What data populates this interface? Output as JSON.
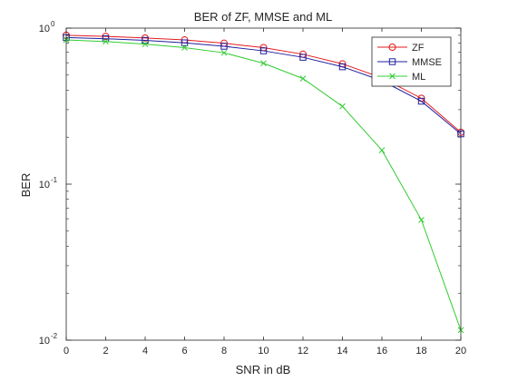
{
  "chart_data": {
    "type": "line",
    "title": "BER of ZF, MMSE and ML",
    "xlabel": "SNR in dB",
    "ylabel": "BER",
    "xlim": [
      0,
      20
    ],
    "ylim": [
      0.01,
      1
    ],
    "yscale": "log",
    "grid": false,
    "legend_position": "top-right",
    "x": [
      0,
      2,
      4,
      6,
      8,
      10,
      12,
      14,
      16,
      18,
      20
    ],
    "x_ticks": [
      "0",
      "2",
      "4",
      "6",
      "8",
      "10",
      "12",
      "14",
      "16",
      "18",
      "20"
    ],
    "y_ticks": [
      {
        "value": 0.01,
        "base": "10",
        "exp": "-2"
      },
      {
        "value": 0.1,
        "base": "10",
        "exp": "-1"
      },
      {
        "value": 1,
        "base": "10",
        "exp": "0"
      }
    ],
    "series": [
      {
        "name": "ZF",
        "color": "#e41a1c",
        "marker": "circle",
        "values": [
          0.9,
          0.885,
          0.865,
          0.84,
          0.8,
          0.75,
          0.68,
          0.59,
          0.48,
          0.355,
          0.215
        ]
      },
      {
        "name": "MMSE",
        "color": "#1f1fa0",
        "marker": "square",
        "values": [
          0.87,
          0.855,
          0.835,
          0.805,
          0.765,
          0.715,
          0.65,
          0.565,
          0.46,
          0.34,
          0.21
        ]
      },
      {
        "name": "ML",
        "color": "#33cc33",
        "marker": "x",
        "values": [
          0.84,
          0.82,
          0.79,
          0.75,
          0.695,
          0.595,
          0.475,
          0.315,
          0.165,
          0.059,
          0.0116
        ]
      }
    ]
  }
}
